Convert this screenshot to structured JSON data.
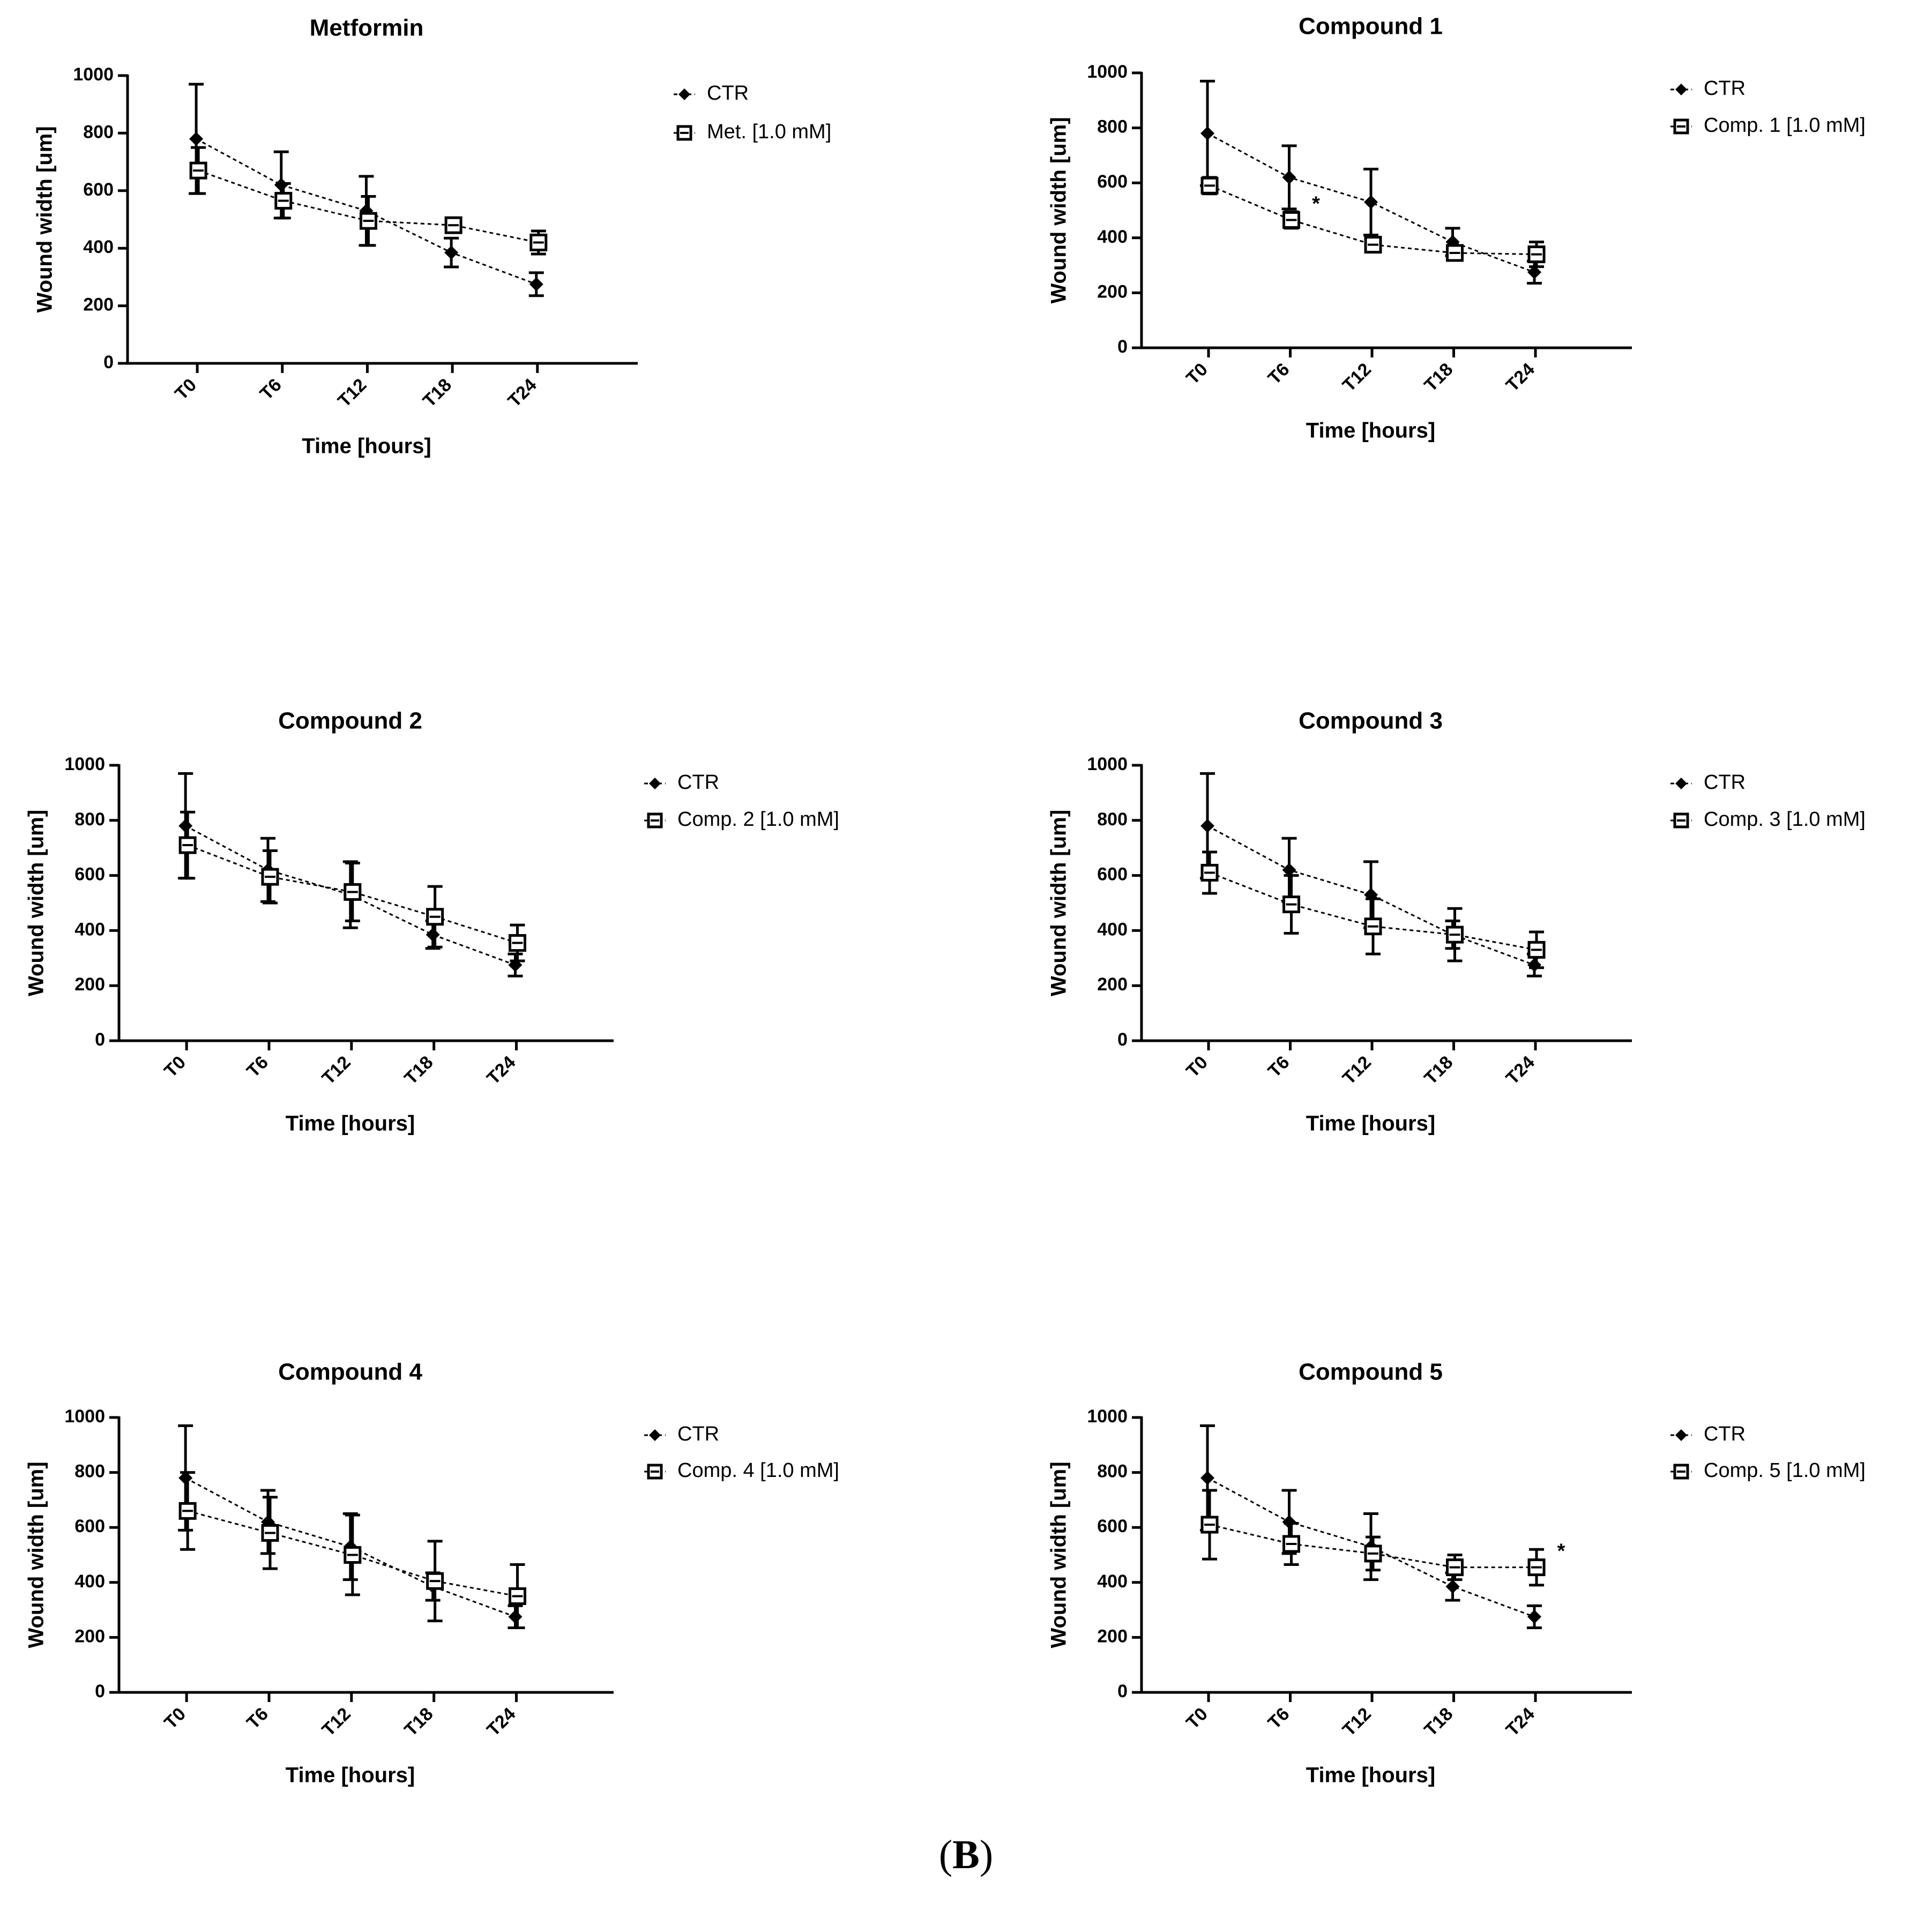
{
  "figure": {
    "panel_label": "B"
  },
  "chart_data": [
    {
      "type": "line",
      "title": "Metformin",
      "xlabel": "Time [hours]",
      "ylabel": "Wound width [um]",
      "categories": [
        "T0",
        "T6",
        "T12",
        "T18",
        "T24"
      ],
      "ylim": [
        0,
        1000
      ],
      "yticks": [
        0,
        200,
        400,
        600,
        800,
        1000
      ],
      "legend_position": "right",
      "series": [
        {
          "name": "CTR",
          "marker": "diamond",
          "values": [
            780,
            620,
            530,
            385,
            275
          ],
          "errors": [
            190,
            115,
            120,
            50,
            40
          ]
        },
        {
          "name": "Met. [1.0 mM]",
          "marker": "open-square",
          "values": [
            670,
            565,
            495,
            480,
            420
          ],
          "errors": [
            80,
            60,
            85,
            15,
            40
          ]
        }
      ],
      "annotations": []
    },
    {
      "type": "line",
      "title": "Compound 1",
      "xlabel": "Time [hours]",
      "ylabel": "Wound width [um]",
      "categories": [
        "T0",
        "T6",
        "T12",
        "T18",
        "T24"
      ],
      "ylim": [
        0,
        1000
      ],
      "yticks": [
        0,
        200,
        400,
        600,
        800,
        1000
      ],
      "legend_position": "right",
      "series": [
        {
          "name": "CTR",
          "marker": "diamond",
          "values": [
            780,
            620,
            530,
            385,
            275
          ],
          "errors": [
            190,
            115,
            120,
            50,
            40
          ]
        },
        {
          "name": "Comp. 1 [1.0 mM]",
          "marker": "open-square",
          "values": [
            590,
            465,
            375,
            345,
            340
          ],
          "errors": [
            30,
            30,
            25,
            25,
            45
          ]
        }
      ],
      "annotations": [
        {
          "text": "*",
          "category": "T6",
          "series": "Comp. 1 [1.0 mM]"
        }
      ]
    },
    {
      "type": "line",
      "title": "Compound 2",
      "xlabel": "Time [hours]",
      "ylabel": "Wound width [um]",
      "categories": [
        "T0",
        "T6",
        "T12",
        "T18",
        "T24"
      ],
      "ylim": [
        0,
        1000
      ],
      "yticks": [
        0,
        200,
        400,
        600,
        800,
        1000
      ],
      "legend_position": "right",
      "series": [
        {
          "name": "CTR",
          "marker": "diamond",
          "values": [
            780,
            620,
            530,
            385,
            275
          ],
          "errors": [
            190,
            115,
            120,
            50,
            40
          ]
        },
        {
          "name": "Comp. 2 [1.0 mM]",
          "marker": "open-square",
          "values": [
            710,
            595,
            540,
            450,
            355
          ],
          "errors": [
            120,
            95,
            105,
            110,
            65
          ]
        }
      ],
      "annotations": []
    },
    {
      "type": "line",
      "title": "Compound 3",
      "xlabel": "Time [hours]",
      "ylabel": "Wound width [um]",
      "categories": [
        "T0",
        "T6",
        "T12",
        "T18",
        "T24"
      ],
      "ylim": [
        0,
        1000
      ],
      "yticks": [
        0,
        200,
        400,
        600,
        800,
        1000
      ],
      "legend_position": "right",
      "series": [
        {
          "name": "CTR",
          "marker": "diamond",
          "values": [
            780,
            620,
            530,
            385,
            275
          ],
          "errors": [
            190,
            115,
            120,
            50,
            40
          ]
        },
        {
          "name": "Comp. 3 [1.0 mM]",
          "marker": "open-square",
          "values": [
            610,
            495,
            415,
            385,
            330
          ],
          "errors": [
            75,
            105,
            100,
            95,
            65
          ]
        }
      ],
      "annotations": []
    },
    {
      "type": "line",
      "title": "Compound 4",
      "xlabel": "Time [hours]",
      "ylabel": "Wound width [um]",
      "categories": [
        "T0",
        "T6",
        "T12",
        "T18",
        "T24"
      ],
      "ylim": [
        0,
        1000
      ],
      "yticks": [
        0,
        200,
        400,
        600,
        800,
        1000
      ],
      "legend_position": "right",
      "series": [
        {
          "name": "CTR",
          "marker": "diamond",
          "values": [
            780,
            620,
            530,
            385,
            275
          ],
          "errors": [
            190,
            115,
            120,
            50,
            40
          ]
        },
        {
          "name": "Comp. 4 [1.0 mM]",
          "marker": "open-square",
          "values": [
            660,
            580,
            500,
            405,
            350
          ],
          "errors": [
            140,
            130,
            145,
            145,
            115
          ]
        }
      ],
      "annotations": []
    },
    {
      "type": "line",
      "title": "Compound 5",
      "xlabel": "Time [hours]",
      "ylabel": "Wound width [um]",
      "categories": [
        "T0",
        "T6",
        "T12",
        "T18",
        "T24"
      ],
      "ylim": [
        0,
        1000
      ],
      "yticks": [
        0,
        200,
        400,
        600,
        800,
        1000
      ],
      "legend_position": "right",
      "series": [
        {
          "name": "CTR",
          "marker": "diamond",
          "values": [
            780,
            620,
            530,
            385,
            275
          ],
          "errors": [
            190,
            115,
            120,
            50,
            40
          ]
        },
        {
          "name": "Comp. 5 [1.0 mM]",
          "marker": "open-square",
          "values": [
            610,
            540,
            505,
            455,
            455
          ],
          "errors": [
            125,
            75,
            60,
            45,
            65
          ]
        }
      ],
      "annotations": [
        {
          "text": "*",
          "category": "T24",
          "series": "Comp. 5 [1.0 mM]"
        }
      ]
    }
  ]
}
